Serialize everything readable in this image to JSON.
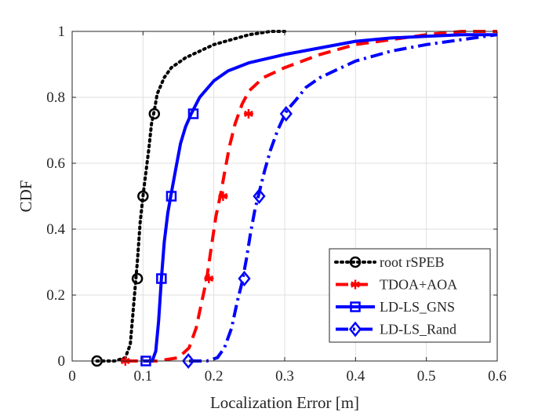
{
  "chart_data": {
    "type": "line",
    "title": "",
    "xlabel": "Localization Error [m]",
    "ylabel": "CDF",
    "xlim": [
      0,
      0.6
    ],
    "ylim": [
      0,
      1
    ],
    "xticks": [
      0,
      0.1,
      0.2,
      0.3,
      0.4,
      0.5,
      0.6
    ],
    "xtick_labels": [
      "0",
      "0.1",
      "0.2",
      "0.3",
      "0.4",
      "0.5",
      "0.6"
    ],
    "yticks": [
      0,
      0.2,
      0.4,
      0.6,
      0.8,
      1
    ],
    "ytick_labels": [
      "0",
      "0.2",
      "0.4",
      "0.6",
      "0.8",
      "1"
    ],
    "grid": true,
    "legend_position": "bottom-right",
    "series": [
      {
        "name": "root rSPEB",
        "color": "#000000",
        "dash": "dotted",
        "marker": "circle",
        "x": [
          0.035,
          0.06,
          0.075,
          0.082,
          0.088,
          0.092,
          0.096,
          0.1,
          0.104,
          0.108,
          0.112,
          0.116,
          0.12,
          0.13,
          0.14,
          0.16,
          0.2,
          0.25,
          0.28,
          0.3
        ],
        "y": [
          0,
          0,
          0.01,
          0.05,
          0.2,
          0.3,
          0.42,
          0.5,
          0.57,
          0.64,
          0.72,
          0.76,
          0.81,
          0.86,
          0.89,
          0.92,
          0.96,
          0.99,
          1.0,
          1.0
        ],
        "markers_x": [
          0.035,
          0.092,
          0.1,
          0.116
        ],
        "markers_y": [
          0,
          0.25,
          0.5,
          0.75
        ]
      },
      {
        "name": "TDOA+AOA",
        "color": "#ff0000",
        "dash": "dashed",
        "marker": "asterisk",
        "x": [
          0.075,
          0.12,
          0.15,
          0.165,
          0.175,
          0.183,
          0.19,
          0.196,
          0.203,
          0.21,
          0.215,
          0.222,
          0.23,
          0.24,
          0.25,
          0.27,
          0.3,
          0.35,
          0.4,
          0.45,
          0.5,
          0.55,
          0.6
        ],
        "y": [
          0,
          0.0,
          0.01,
          0.04,
          0.1,
          0.18,
          0.25,
          0.34,
          0.44,
          0.51,
          0.57,
          0.65,
          0.72,
          0.78,
          0.82,
          0.86,
          0.89,
          0.93,
          0.96,
          0.975,
          0.99,
          1.0,
          1.0
        ],
        "markers_x": [
          0.075,
          0.193,
          0.213,
          0.249
        ],
        "markers_y": [
          0,
          0.25,
          0.5,
          0.75
        ]
      },
      {
        "name": "LD-LS_GNS",
        "color": "#0000ff",
        "dash": "solid",
        "marker": "square",
        "x": [
          0.1,
          0.113,
          0.118,
          0.122,
          0.126,
          0.13,
          0.135,
          0.14,
          0.146,
          0.153,
          0.16,
          0.168,
          0.18,
          0.2,
          0.22,
          0.25,
          0.3,
          0.35,
          0.4,
          0.45,
          0.5,
          0.55,
          0.6
        ],
        "y": [
          0,
          0.0,
          0.03,
          0.12,
          0.25,
          0.36,
          0.45,
          0.51,
          0.58,
          0.66,
          0.71,
          0.75,
          0.8,
          0.85,
          0.88,
          0.905,
          0.93,
          0.95,
          0.97,
          0.98,
          0.985,
          0.99,
          0.99
        ],
        "markers_x": [
          0.104,
          0.126,
          0.14,
          0.171
        ],
        "markers_y": [
          0,
          0.25,
          0.5,
          0.75
        ]
      },
      {
        "name": "LD-LS_Rand",
        "color": "#0000ff",
        "dash": "dash-dot",
        "marker": "diamond",
        "x": [
          0.165,
          0.19,
          0.205,
          0.215,
          0.225,
          0.233,
          0.24,
          0.246,
          0.252,
          0.258,
          0.265,
          0.272,
          0.28,
          0.29,
          0.303,
          0.315,
          0.33,
          0.35,
          0.4,
          0.45,
          0.5,
          0.55,
          0.6
        ],
        "y": [
          0,
          0.0,
          0.01,
          0.04,
          0.1,
          0.18,
          0.24,
          0.31,
          0.39,
          0.46,
          0.52,
          0.58,
          0.64,
          0.7,
          0.76,
          0.79,
          0.83,
          0.86,
          0.91,
          0.94,
          0.96,
          0.975,
          0.99
        ],
        "markers_x": [
          0.164,
          0.243,
          0.264,
          0.302
        ],
        "markers_y": [
          0,
          0.25,
          0.5,
          0.75
        ]
      }
    ]
  }
}
